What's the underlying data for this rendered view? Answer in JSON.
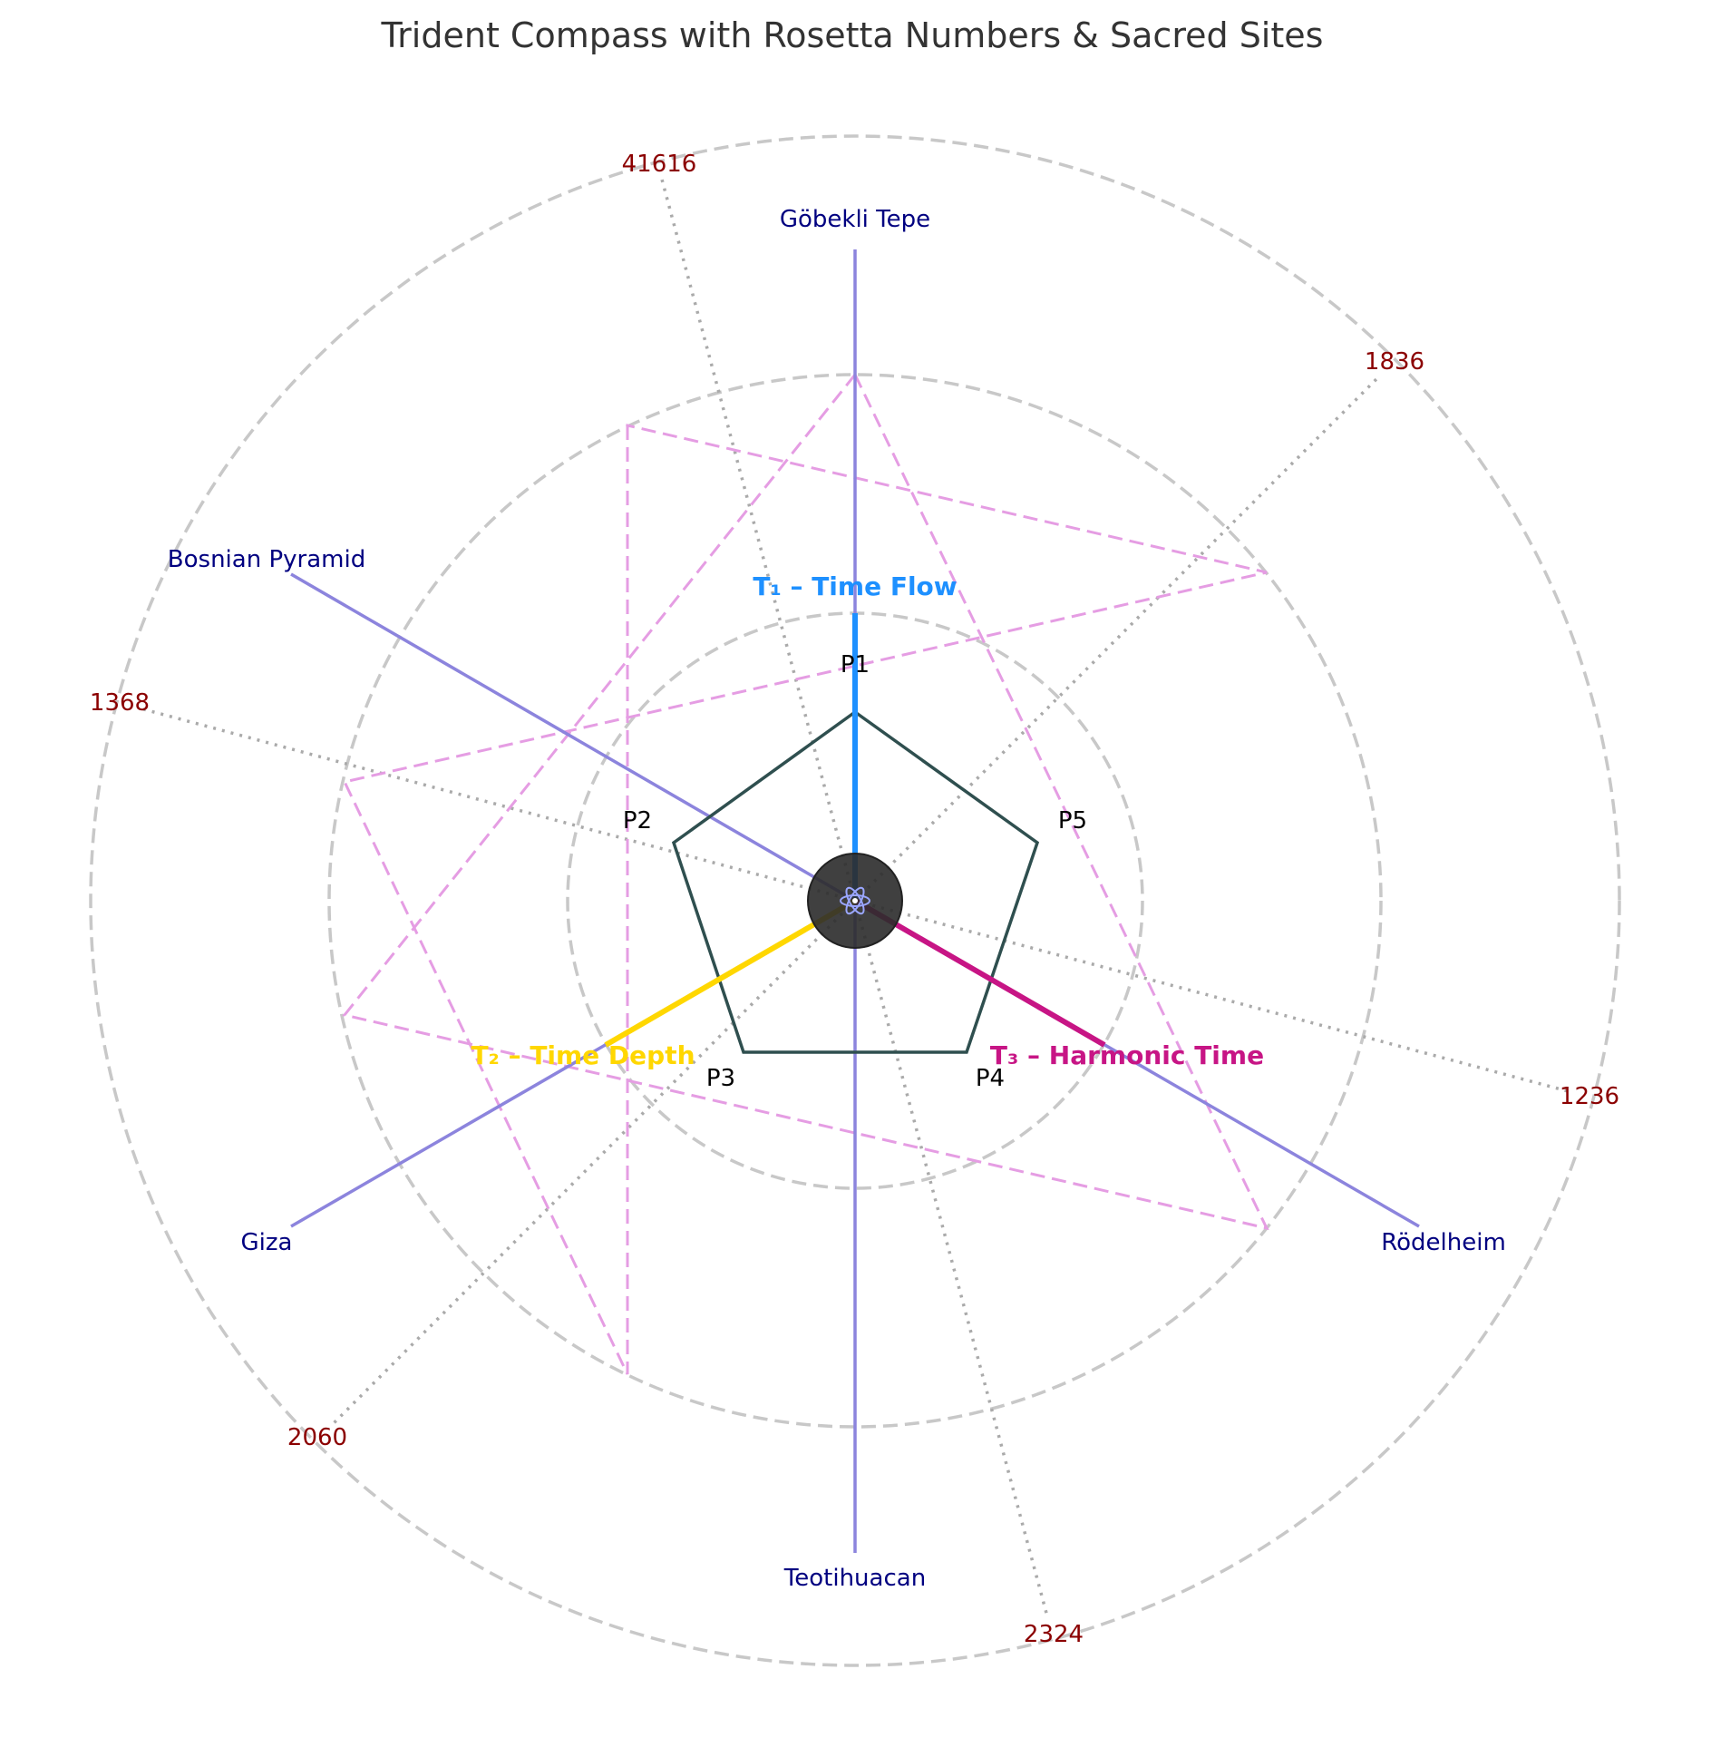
{
  "title": "Trident Compass with Rosetta Numbers & Sacred Sites",
  "title_icon": "trident-icon",
  "sites": [
    "Göbekli Tepe",
    "Bosnian Pyramid",
    "Giza",
    "Teotihuacan",
    "Rödelheim"
  ],
  "rosetta_numbers": [
    "41616",
    "1368",
    "2060",
    "2324",
    "1236",
    "1836"
  ],
  "pentagon_points": [
    "P1",
    "P2",
    "P3",
    "P4",
    "P5"
  ],
  "tridents": [
    {
      "label": "T₁ – Time Flow",
      "color": "#1e90ff"
    },
    {
      "label": "T₂ – Time Depth",
      "color": "#ffd700"
    },
    {
      "label": "T₃ – Harmonic Time",
      "color": "#c71585"
    }
  ],
  "center_icon": "atom-icon",
  "colors": {
    "site_lines": "#8c84dd",
    "site_labels": "#000080",
    "number_labels": "#8b0000",
    "hexagram": "#e59de3",
    "pentagon": "#2f4f4f",
    "rings": "#c8c8c8",
    "center": "#2b2b2b"
  }
}
